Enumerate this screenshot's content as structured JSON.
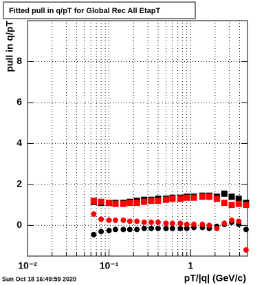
{
  "chart_data": {
    "type": "scatter",
    "title": "Fitted pull in q/pT for Global Rec All EtapT",
    "x_label": "pT/|q| (GeV/c)",
    "y_label": "pull in q/pT",
    "footer": "Sun Oct 18 16:49:59 2020",
    "x_scale": "log",
    "xlim": [
      0.01,
      5
    ],
    "ylim": [
      -1.5,
      10
    ],
    "xticks": [
      {
        "value": 0.01,
        "label": "10⁻²"
      },
      {
        "value": 0.1,
        "label": "10⁻¹"
      },
      1
    ],
    "xgrid_minor": [
      0.02,
      0.03,
      0.04,
      0.05,
      0.06,
      0.07,
      0.08,
      0.09,
      0.2,
      0.3,
      0.4,
      0.5,
      0.6,
      0.7,
      0.8,
      0.9,
      2,
      3,
      4
    ],
    "yticks": [
      0,
      2,
      4,
      6,
      8
    ],
    "grid": true,
    "x": [
      0.065,
      0.08,
      0.1,
      0.12,
      0.15,
      0.18,
      0.22,
      0.27,
      0.33,
      0.4,
      0.5,
      0.6,
      0.75,
      0.9,
      1.1,
      1.4,
      1.7,
      2.1,
      2.6,
      3.2,
      3.9,
      4.8
    ],
    "series": [
      {
        "color": "#000000",
        "marker": "square",
        "values": [
          1.15,
          1.1,
          1.1,
          1.1,
          1.1,
          1.15,
          1.2,
          1.25,
          1.25,
          1.3,
          1.3,
          1.35,
          1.35,
          1.4,
          1.4,
          1.45,
          1.45,
          1.4,
          1.55,
          1.4,
          1.3,
          1.1
        ]
      },
      {
        "color": "#000000",
        "marker": "circle",
        "values": [
          -0.45,
          -0.3,
          -0.25,
          -0.2,
          -0.2,
          -0.2,
          -0.2,
          -0.15,
          -0.15,
          -0.15,
          -0.15,
          -0.15,
          -0.15,
          -0.15,
          -0.1,
          -0.1,
          -0.15,
          -0.05,
          0.05,
          0.15,
          0.05,
          -0.2
        ]
      },
      {
        "color": "#ff0000",
        "marker": "square",
        "values": [
          1.2,
          1.15,
          1.1,
          1.05,
          1.05,
          1.1,
          1.1,
          1.15,
          1.2,
          1.2,
          1.25,
          1.3,
          1.3,
          1.35,
          1.35,
          1.4,
          1.4,
          1.3,
          1.1,
          1.0,
          1.05,
          1.0
        ]
      },
      {
        "color": "#ff0000",
        "marker": "circle",
        "values": [
          0.55,
          0.3,
          0.25,
          0.25,
          0.25,
          0.2,
          0.2,
          0.15,
          0.15,
          0.15,
          0.1,
          0.1,
          0.1,
          0.05,
          0.05,
          0.05,
          0.0,
          -0.15,
          0.1,
          0.25,
          0.2,
          -1.2
        ]
      }
    ]
  }
}
